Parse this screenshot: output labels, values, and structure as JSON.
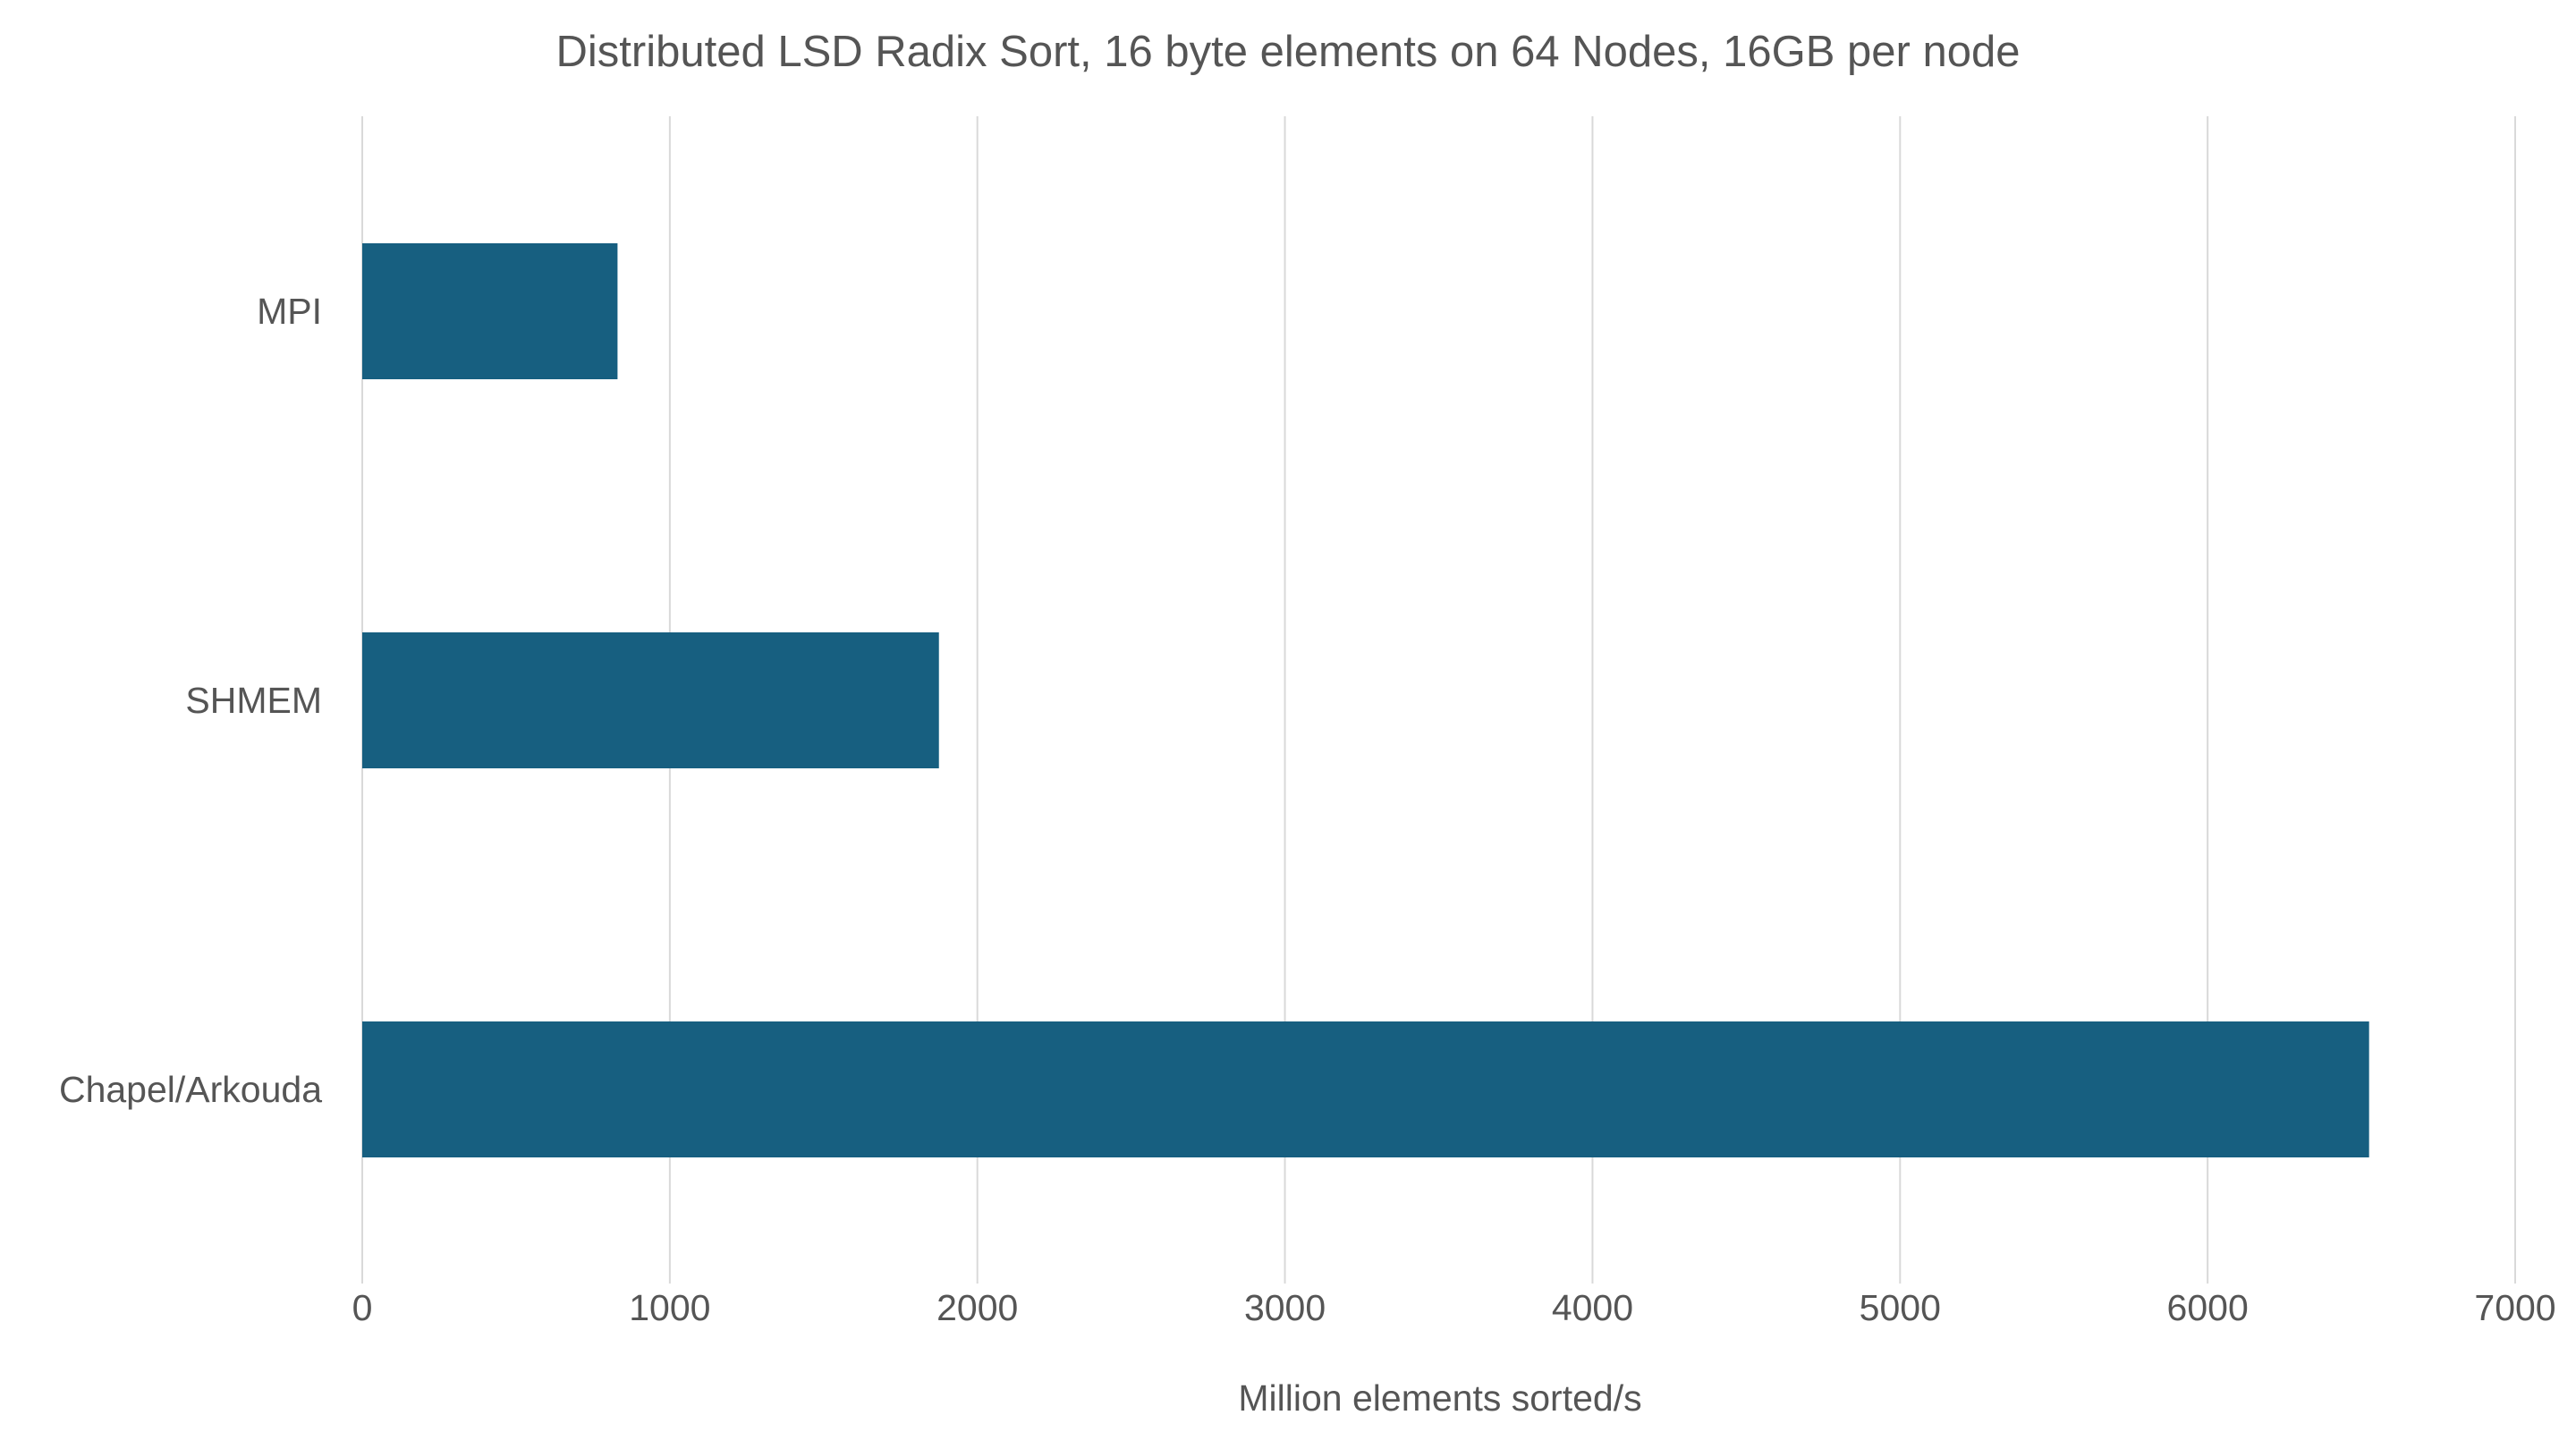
{
  "chart_data": {
    "type": "bar",
    "orientation": "horizontal",
    "title": "Distributed LSD Radix Sort, 16 byte elements on 64 Nodes, 16GB per node",
    "xlabel": "Million elements sorted/s",
    "ylabel": "",
    "categories": [
      "MPI",
      "SHMEM",
      "Chapel/Arkouda"
    ],
    "values": [
      830,
      1875,
      6525
    ],
    "xlim": [
      0,
      7000
    ],
    "ticks": [
      0,
      1000,
      2000,
      3000,
      4000,
      5000,
      6000,
      7000
    ],
    "tick_labels": [
      "0",
      "1000",
      "2000",
      "3000",
      "4000",
      "5000",
      "6000",
      "7000"
    ],
    "bar_color": "#175f80",
    "grid": true,
    "legend": "none"
  }
}
